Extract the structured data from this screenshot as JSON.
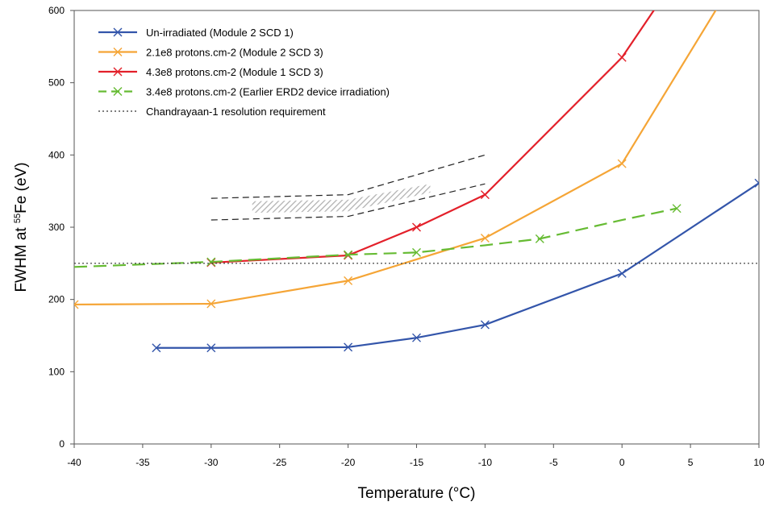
{
  "chart_data": {
    "type": "line",
    "xlabel": "Temperature (°C)",
    "ylabel_parts": [
      "FWHM at ",
      "55",
      "Fe (eV)"
    ],
    "xlim": [
      -40,
      10
    ],
    "ylim": [
      0,
      600
    ],
    "xticks": [
      -40,
      -35,
      -30,
      -25,
      -20,
      -15,
      -10,
      -5,
      0,
      5,
      10
    ],
    "yticks": [
      0,
      100,
      200,
      300,
      400,
      500,
      600
    ],
    "grid": false,
    "legend_position": "top-left",
    "series": [
      {
        "name": "Un-irradiated (Module 2 SCD 1)",
        "color": "#3355aa",
        "style": "solid",
        "marker": "x",
        "x": [
          -34,
          -30,
          -20,
          -15,
          -10,
          0,
          10
        ],
        "y": [
          133,
          133,
          134,
          147,
          165,
          236,
          361
        ]
      },
      {
        "name": "2.1e8 protons.cm-2 (Module 2 SCD 3)",
        "color": "#f5a536",
        "style": "solid",
        "marker": "x",
        "x": [
          -40,
          -30,
          -20,
          -10,
          0,
          7
        ],
        "y": [
          193,
          194,
          226,
          285,
          388,
          605
        ],
        "marker_count": 5
      },
      {
        "name": "4.3e8 protons.cm-2 (Module 1 SCD 3)",
        "color": "#e3202a",
        "style": "solid",
        "marker": "x",
        "x": [
          -30,
          -20,
          -15,
          -10,
          0,
          2.5
        ],
        "y": [
          251,
          261,
          300,
          345,
          535,
          605
        ],
        "marker_count": 5
      },
      {
        "name": "3.4e8 protons.cm-2 (Earlier ERD2 device irradiation)",
        "color": "#66bb33",
        "style": "dashed",
        "marker": "x",
        "x": [
          -40,
          -30,
          -20,
          -15,
          -10,
          -6,
          0,
          4
        ],
        "y": [
          245,
          252,
          262,
          265,
          275,
          284,
          310,
          326
        ],
        "marker_idx": [
          1,
          2,
          3,
          5,
          7
        ]
      },
      {
        "name": "Chandrayaan-1 resolution requirement",
        "color": "#333333",
        "style": "dotted",
        "marker": "none",
        "x": [
          -40,
          10
        ],
        "y": [
          250,
          250
        ]
      }
    ],
    "annotations": {
      "band_upper": {
        "x": [
          -30,
          -20,
          -10
        ],
        "y": [
          340,
          345,
          400
        ]
      },
      "band_lower": {
        "x": [
          -30,
          -20,
          -10
        ],
        "y": [
          310,
          315,
          360
        ]
      },
      "hatch_region": {
        "x": [
          -27,
          -20,
          -14,
          -14,
          -20,
          -27
        ],
        "y": [
          320,
          322,
          348,
          360,
          338,
          336
        ]
      }
    }
  }
}
